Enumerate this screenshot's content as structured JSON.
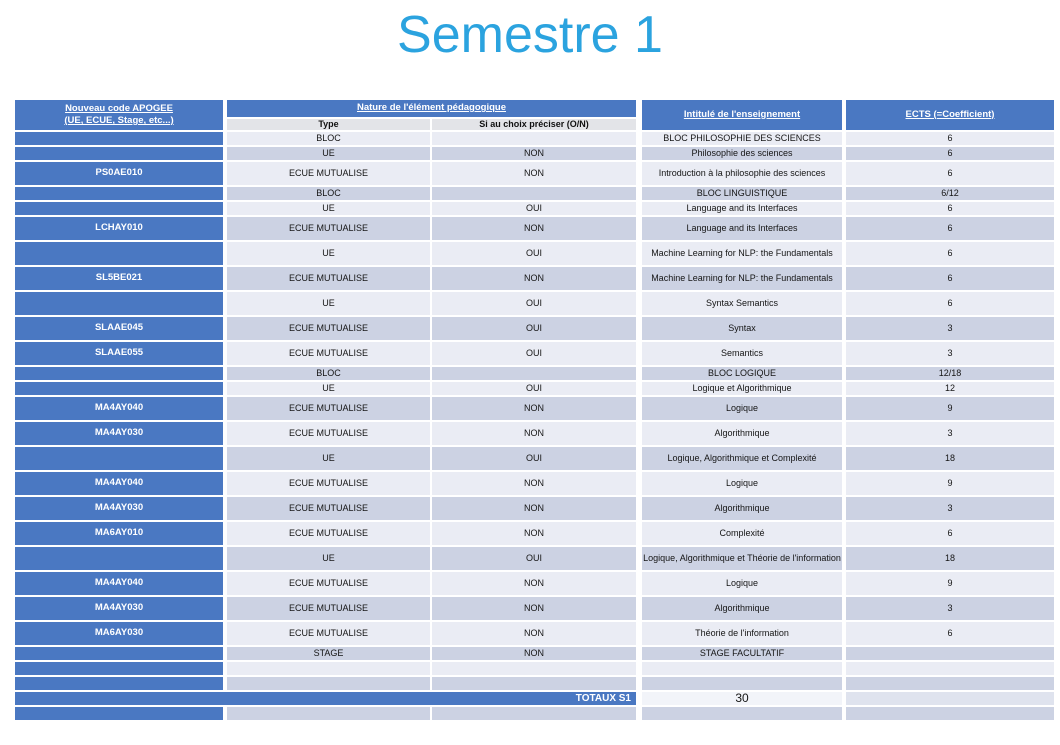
{
  "title": "Semestre 1",
  "colors": {
    "title_blue": "#2ba3df",
    "header_blue": "#4a78c2",
    "row_light": "#eaecf4",
    "row_dark": "#ccd2e3",
    "subheader_gray": "#e3e4e8"
  },
  "table": {
    "headers": {
      "code_line1": "Nouveau code APOGEE",
      "code_line2": "(UE, ECUE, Stage, etc...)",
      "nature": "Nature de l'élément pédagogique",
      "type": "Type",
      "choix": "Si au choix préciser (O/N)",
      "intitule": "Intitulé de l'enseignement",
      "ects": "ECTS (=Coefficient)"
    },
    "rows": [
      {
        "code": "",
        "type": "BLOC",
        "choix": "",
        "intitule": "BLOC PHILOSOPHIE DES SCIENCES",
        "ects": "6",
        "shade": "light",
        "size": "short"
      },
      {
        "code": "",
        "type": "UE",
        "choix": "NON",
        "intitule": "Philosophie des sciences",
        "ects": "6",
        "shade": "dark",
        "size": "short"
      },
      {
        "code": "PS0AE010",
        "type": "ECUE MUTUALISE",
        "choix": "NON",
        "intitule": "Introduction à la philosophie des sciences",
        "ects": "6",
        "shade": "light",
        "size": "tall"
      },
      {
        "code": "",
        "type": "BLOC",
        "choix": "",
        "intitule": "BLOC LINGUISTIQUE",
        "ects": "6/12",
        "shade": "dark",
        "size": "short"
      },
      {
        "code": "",
        "type": "UE",
        "choix": "OUI",
        "intitule": "Language and its Interfaces",
        "ects": "6",
        "shade": "light",
        "size": "short"
      },
      {
        "code": "LCHAY010",
        "type": "ECUE MUTUALISE",
        "choix": "NON",
        "intitule": "Language and its Interfaces",
        "ects": "6",
        "shade": "dark",
        "size": "tall"
      },
      {
        "code": "",
        "type": "UE",
        "choix": "OUI",
        "intitule": "Machine Learning for NLP: the Fundamentals",
        "ects": "6",
        "shade": "light",
        "size": "tall"
      },
      {
        "code": "SL5BE021",
        "type": "ECUE MUTUALISE",
        "choix": "NON",
        "intitule": "Machine Learning for NLP: the Fundamentals",
        "ects": "6",
        "shade": "dark",
        "size": "tall"
      },
      {
        "code": "",
        "type": "UE",
        "choix": "OUI",
        "intitule": "Syntax Semantics",
        "ects": "6",
        "shade": "light",
        "size": "tall"
      },
      {
        "code": "SLAAE045",
        "type": "ECUE MUTUALISE",
        "choix": "OUI",
        "intitule": "Syntax",
        "ects": "3",
        "shade": "dark",
        "size": "tall"
      },
      {
        "code": "SLAAE055",
        "type": "ECUE MUTUALISE",
        "choix": "OUI",
        "intitule": "Semantics",
        "ects": "3",
        "shade": "light",
        "size": "tall"
      },
      {
        "code": "",
        "type": "BLOC",
        "choix": "",
        "intitule": "BLOC LOGIQUE",
        "ects": "12/18",
        "shade": "dark",
        "size": "short"
      },
      {
        "code": "",
        "type": "UE",
        "choix": "OUI",
        "intitule": "Logique et Algorithmique",
        "ects": "12",
        "shade": "light",
        "size": "short"
      },
      {
        "code": "MA4AY040",
        "type": "ECUE MUTUALISE",
        "choix": "NON",
        "intitule": "Logique",
        "ects": "9",
        "shade": "dark",
        "size": "tall"
      },
      {
        "code": "MA4AY030",
        "type": "ECUE MUTUALISE",
        "choix": "NON",
        "intitule": "Algorithmique",
        "ects": "3",
        "shade": "light",
        "size": "tall"
      },
      {
        "code": "",
        "type": "UE",
        "choix": "OUI",
        "intitule": "Logique, Algorithmique et Complexité",
        "ects": "18",
        "shade": "dark",
        "size": "tall"
      },
      {
        "code": "MA4AY040",
        "type": "ECUE MUTUALISE",
        "choix": "NON",
        "intitule": "Logique",
        "ects": "9",
        "shade": "light",
        "size": "tall"
      },
      {
        "code": "MA4AY030",
        "type": "ECUE MUTUALISE",
        "choix": "NON",
        "intitule": "Algorithmique",
        "ects": "3",
        "shade": "dark",
        "size": "tall"
      },
      {
        "code": "MA6AY010",
        "type": "ECUE MUTUALISE",
        "choix": "NON",
        "intitule": "Complexité",
        "ects": "6",
        "shade": "light",
        "size": "tall"
      },
      {
        "code": "",
        "type": "UE",
        "choix": "OUI",
        "intitule": "Logique, Algorithmique et Théorie de l'information",
        "ects": "18",
        "shade": "dark",
        "size": "tall"
      },
      {
        "code": "MA4AY040",
        "type": "ECUE MUTUALISE",
        "choix": "NON",
        "intitule": "Logique",
        "ects": "9",
        "shade": "light",
        "size": "tall"
      },
      {
        "code": "MA4AY030",
        "type": "ECUE MUTUALISE",
        "choix": "NON",
        "intitule": "Algorithmique",
        "ects": "3",
        "shade": "dark",
        "size": "tall"
      },
      {
        "code": "MA6AY030",
        "type": "ECUE MUTUALISE",
        "choix": "NON",
        "intitule": "Théorie de l'information",
        "ects": "6",
        "shade": "light",
        "size": "tall"
      },
      {
        "code": "",
        "type": "STAGE",
        "choix": "NON",
        "intitule": "STAGE FACULTATIF",
        "ects": "",
        "shade": "dark",
        "size": "short"
      },
      {
        "code": "",
        "type": "",
        "choix": "",
        "intitule": "",
        "ects": "",
        "shade": "light",
        "size": "short"
      },
      {
        "code": "",
        "type": "",
        "choix": "",
        "intitule": "",
        "ects": "",
        "shade": "dark",
        "size": "short"
      },
      {
        "totals": true,
        "size": "short"
      },
      {
        "code": "",
        "type": "",
        "choix": "",
        "intitule": "",
        "ects": "",
        "shade": "dark",
        "size": "short"
      }
    ],
    "totals": {
      "label": "TOTAUX S1",
      "value": "30"
    }
  }
}
